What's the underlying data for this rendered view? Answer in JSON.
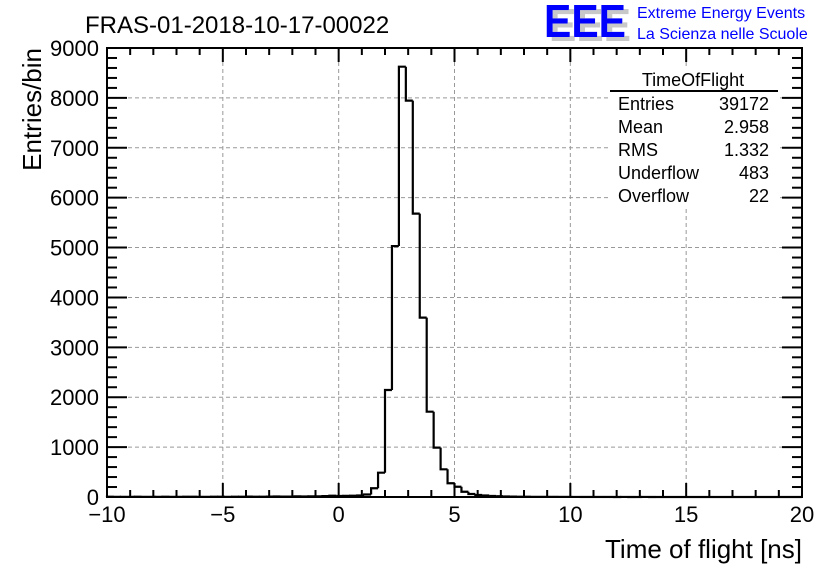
{
  "chart_data": {
    "type": "bar",
    "histogram": true,
    "title": "FRAS-01-2018-10-17-00022",
    "xlabel": "Time of flight [ns]",
    "ylabel": "Entries/bin",
    "xlim": [
      -10,
      20
    ],
    "ylim": [
      0,
      9000
    ],
    "bin_width": 0.3,
    "x_ticks": [
      -10,
      -5,
      0,
      5,
      10,
      15,
      20
    ],
    "x_tick_labels": [
      "−10",
      "−5",
      "0",
      "5",
      "10",
      "15",
      "20"
    ],
    "y_ticks": [
      0,
      1000,
      2000,
      3000,
      4000,
      5000,
      6000,
      7000,
      8000,
      9000
    ],
    "y_tick_labels": [
      "0",
      "1000",
      "2000",
      "3000",
      "4000",
      "5000",
      "6000",
      "7000",
      "8000",
      "9000"
    ],
    "grid": true,
    "values": [
      5,
      3,
      4,
      3,
      5,
      4,
      3,
      4,
      5,
      3,
      4,
      6,
      5,
      4,
      3,
      5,
      6,
      4,
      5,
      6,
      7,
      5,
      6,
      8,
      10,
      8,
      9,
      12,
      10,
      12,
      14,
      18,
      25,
      20,
      22,
      25,
      30,
      50,
      175,
      487,
      2145,
      5030,
      8625,
      7945,
      5680,
      3595,
      1710,
      990,
      555,
      275,
      205,
      105,
      60,
      40,
      30,
      20,
      15,
      10,
      8,
      6,
      5,
      4,
      3,
      3,
      2,
      2,
      2,
      1,
      1,
      1,
      1,
      1,
      1,
      0,
      1,
      0,
      0,
      1,
      0,
      0,
      0,
      0,
      0,
      0,
      0,
      0,
      0,
      0,
      0,
      0,
      0,
      0,
      0,
      0,
      0,
      0,
      0,
      0,
      0,
      0
    ],
    "stats": {
      "name": "TimeOfFlight",
      "rows": [
        {
          "label": "Entries",
          "value": "39172"
        },
        {
          "label": "Mean",
          "value": "2.958"
        },
        {
          "label": "RMS",
          "value": "1.332"
        },
        {
          "label": "Underflow",
          "value": "483"
        },
        {
          "label": "Overflow",
          "value": "22"
        }
      ]
    }
  },
  "logo": {
    "letters": "EEE",
    "line1": "Extreme Energy Events",
    "line2": "La Scienza nelle Scuole",
    "color": "#0000ff"
  }
}
